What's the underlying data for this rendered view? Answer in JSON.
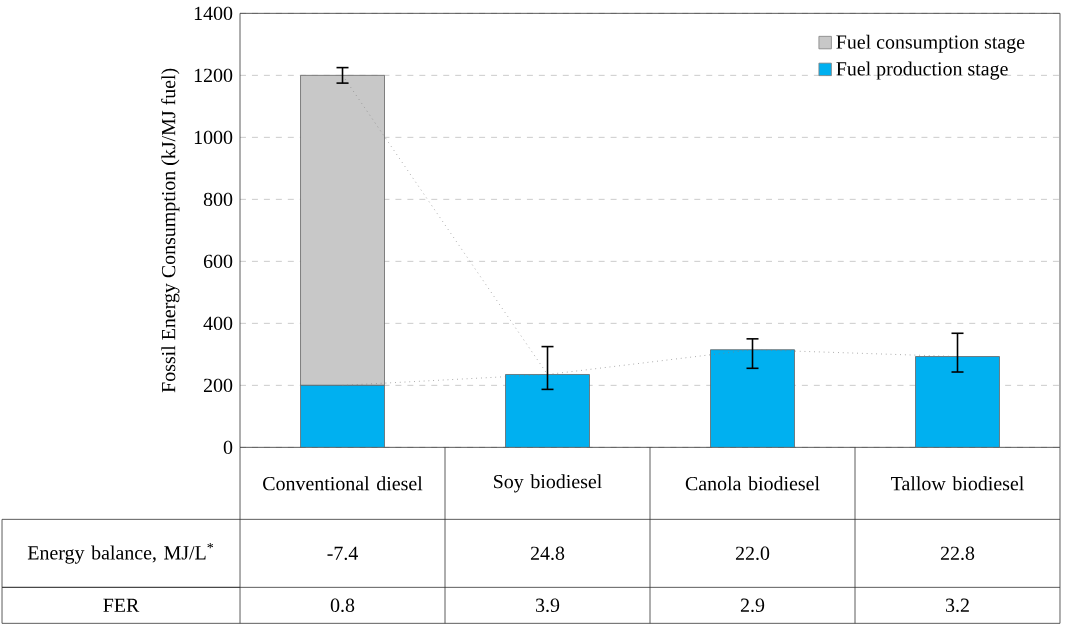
{
  "chart_data": {
    "type": "bar",
    "stacked": true,
    "ylabel": "Fossil Energy Consumption (kJ/MJ fuel)",
    "categories": [
      "Conventional diesel",
      "Soy biodiesel",
      "Canola biodiesel",
      "Tallow biodiesel"
    ],
    "series": [
      {
        "name": "Fuel production stage",
        "color": "#00b0f0",
        "values": [
          200,
          235,
          315,
          293
        ],
        "errors": [
          null,
          [
            187,
            325
          ],
          [
            255,
            350
          ],
          [
            243,
            368
          ]
        ]
      },
      {
        "name": "Fuel consumption stage",
        "color": "#c8c8c8",
        "values": [
          1000,
          null,
          null,
          null
        ],
        "errors": [
          [
            1175,
            1225
          ],
          null,
          null,
          null
        ]
      },
      {
        "type": "line",
        "color": "#808080",
        "line_style": "dotted",
        "values": [
          200,
          235,
          315,
          293
        ]
      },
      {
        "type": "line",
        "color": "#808080",
        "line_style": "dotted",
        "values": [
          1200,
          235,
          null,
          null
        ]
      }
    ],
    "ylim": [
      0,
      1400
    ],
    "yticks": [
      0,
      200,
      400,
      600,
      800,
      1000,
      1200,
      1400
    ],
    "grid": "y",
    "legend": "top right",
    "annotations": [
      "Energy balance, MJ/L$^{*}$",
      "-7.4",
      "24.8",
      "22.0",
      "22.8",
      "FER",
      "0.8",
      "3.9",
      "2.9",
      "3.2"
    ]
  }
}
